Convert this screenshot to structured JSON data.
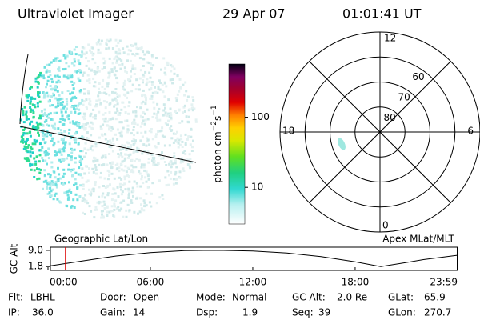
{
  "header": {
    "instrument": "Ultraviolet Imager",
    "date": "29 Apr 07",
    "time": "01:01:41 UT"
  },
  "colorbar": {
    "label": "photon cm",
    "label_sup1": "−2",
    "label_mid": "s",
    "label_sup2": "−1",
    "log": true,
    "clim": [
      3,
      575
    ],
    "ticks": [
      10,
      100
    ]
  },
  "polar": {
    "rlim": [
      90,
      50
    ],
    "rings": [
      80,
      70,
      60
    ],
    "hour_labels": [
      "12",
      "6",
      "0",
      "18"
    ]
  },
  "strip": {
    "left_title": "Geographic Lat/Lon",
    "right_title": "Apex MLat/MLT",
    "ylabel": "GC Alt",
    "xlim": [
      0,
      23.98
    ],
    "ylim": [
      0.1,
      10.4
    ],
    "yticks": [
      {
        "value": 9,
        "label": "9.0"
      },
      1.8
    ],
    "xticks": [
      {
        "value": 0,
        "label": "00:00"
      },
      {
        "value": 6,
        "label": "06:00"
      },
      {
        "value": 12,
        "label": "12:00"
      },
      {
        "value": 18,
        "label": "18:00"
      },
      {
        "value": 23.98,
        "label": "23:59"
      }
    ],
    "x": [
      0,
      2,
      4,
      6,
      8,
      10,
      12,
      14,
      16,
      18,
      19.5,
      21,
      22,
      23.98
    ],
    "values": [
      2.0,
      4.3,
      6.5,
      8.0,
      8.9,
      9.0,
      8.7,
      7.8,
      6.2,
      3.9,
      1.8,
      3.6,
      4.9,
      6.8
    ],
    "marker_x": 1.03,
    "marker_color": "#dd0000"
  },
  "fields": [
    [
      {
        "label": "Flt:",
        "value": "LBHL"
      },
      {
        "label": "Door:",
        "value": "Open"
      },
      {
        "label": "Mode:",
        "value": "Normal"
      },
      {
        "label": "GC Alt:",
        "value": "2.0 Re"
      },
      {
        "label": "GLat:",
        "value": "65.9"
      }
    ],
    [
      {
        "label": "IP:",
        "value": "36.0"
      },
      {
        "label": "Gain:",
        "value": "14"
      },
      {
        "label": "Dsp:",
        "value": "1.9"
      },
      {
        "label": "Seq:",
        "value": "39"
      },
      {
        "label": "GLon:",
        "value": "270.7"
      }
    ]
  ]
}
